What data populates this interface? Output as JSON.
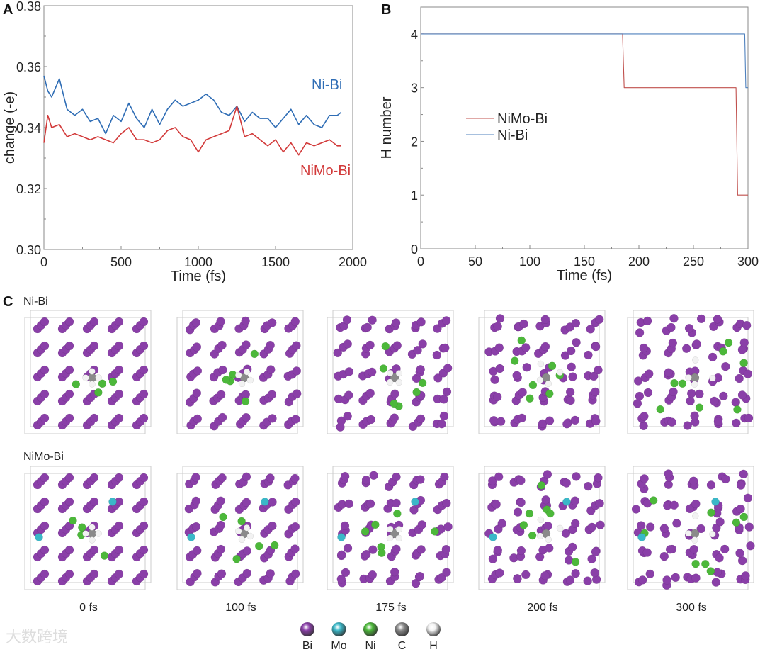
{
  "chart_data": [
    {
      "panel": "A",
      "type": "line",
      "xlabel": "Time (fs)",
      "ylabel": "change (-e)",
      "xlim": [
        0,
        2000
      ],
      "ylim": [
        0.3,
        0.38
      ],
      "xticks": [
        "0",
        "500",
        "1000",
        "1500",
        "2000"
      ],
      "yticks": [
        "0.30",
        "0.32",
        "0.34",
        "0.36",
        "0.38"
      ],
      "series": [
        {
          "name": "Ni-Bi",
          "color": "#2f6db5",
          "x": [
            0,
            25,
            50,
            100,
            150,
            200,
            250,
            300,
            350,
            400,
            450,
            500,
            550,
            600,
            650,
            700,
            750,
            800,
            850,
            900,
            950,
            1000,
            1050,
            1100,
            1150,
            1200,
            1250,
            1300,
            1350,
            1400,
            1450,
            1500,
            1550,
            1600,
            1650,
            1700,
            1750,
            1800,
            1850,
            1900,
            1925
          ],
          "y": [
            0.357,
            0.352,
            0.35,
            0.356,
            0.346,
            0.344,
            0.346,
            0.342,
            0.343,
            0.338,
            0.344,
            0.342,
            0.348,
            0.343,
            0.34,
            0.346,
            0.341,
            0.346,
            0.349,
            0.347,
            0.348,
            0.349,
            0.351,
            0.349,
            0.345,
            0.344,
            0.347,
            0.342,
            0.345,
            0.343,
            0.343,
            0.34,
            0.343,
            0.346,
            0.341,
            0.344,
            0.341,
            0.34,
            0.344,
            0.344,
            0.345
          ]
        },
        {
          "name": "NiMo-Bi",
          "color": "#d23a3a",
          "x": [
            0,
            25,
            50,
            100,
            150,
            200,
            250,
            300,
            350,
            400,
            450,
            500,
            550,
            600,
            650,
            700,
            750,
            800,
            850,
            900,
            950,
            1000,
            1050,
            1100,
            1150,
            1200,
            1250,
            1300,
            1350,
            1400,
            1450,
            1500,
            1550,
            1600,
            1650,
            1700,
            1750,
            1800,
            1850,
            1900,
            1925
          ],
          "y": [
            0.335,
            0.344,
            0.34,
            0.341,
            0.337,
            0.338,
            0.337,
            0.336,
            0.337,
            0.336,
            0.335,
            0.338,
            0.34,
            0.336,
            0.336,
            0.335,
            0.336,
            0.339,
            0.34,
            0.337,
            0.336,
            0.332,
            0.336,
            0.337,
            0.338,
            0.339,
            0.347,
            0.337,
            0.338,
            0.336,
            0.334,
            0.336,
            0.332,
            0.335,
            0.331,
            0.335,
            0.334,
            0.335,
            0.336,
            0.334,
            0.334
          ]
        }
      ],
      "annotations": [
        "Ni-Bi",
        "NiMo-Bi"
      ]
    },
    {
      "panel": "B",
      "type": "line",
      "xlabel": "Time (fs)",
      "ylabel": "H number",
      "xlim": [
        0,
        300
      ],
      "ylim": [
        0,
        4.5
      ],
      "xticks": [
        "0",
        "50",
        "100",
        "150",
        "200",
        "250",
        "300"
      ],
      "yticks": [
        "0",
        "1",
        "2",
        "3",
        "4"
      ],
      "legend": "center-left",
      "series": [
        {
          "name": "NiMo-Bi",
          "color": "#c0504d",
          "x": [
            0,
            185,
            186.5,
            289,
            290.5,
            300
          ],
          "y": [
            4,
            4,
            3,
            3,
            1,
            1
          ]
        },
        {
          "name": "Ni-Bi",
          "color": "#4f81bd",
          "x": [
            0,
            297,
            298,
            300
          ],
          "y": [
            4,
            4,
            3,
            3
          ]
        }
      ]
    }
  ],
  "panel_c": {
    "label": "C",
    "rows": [
      {
        "name": "Ni-Bi",
        "dopant": false
      },
      {
        "name": "NiMo-Bi",
        "dopant": true
      }
    ],
    "times": [
      "0 fs",
      "100 fs",
      "175 fs",
      "200 fs",
      "300 fs"
    ],
    "legend": [
      {
        "symbol": "Bi",
        "color": "#8a3fa8"
      },
      {
        "symbol": "Mo",
        "color": "#3ab8c8"
      },
      {
        "symbol": "Ni",
        "color": "#4cb83a"
      },
      {
        "symbol": "C",
        "color": "#8a8a8a"
      },
      {
        "symbol": "H",
        "color": "#f2f2f2"
      }
    ]
  },
  "watermark": "大数跨境"
}
